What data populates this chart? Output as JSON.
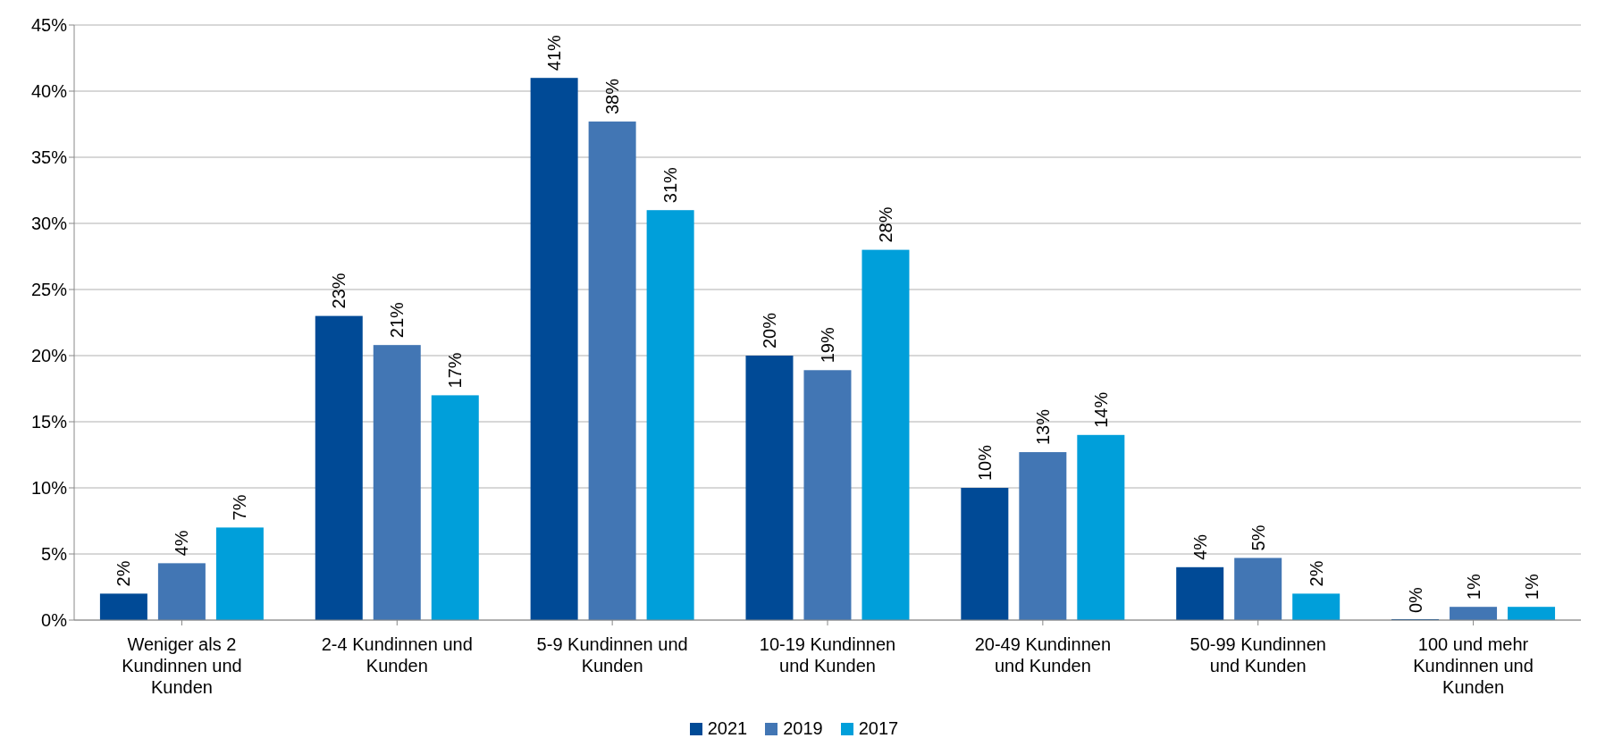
{
  "chart_data": {
    "type": "bar",
    "categories": [
      "Weniger als 2 Kundinnen und Kunden",
      "2-4 Kundinnen und Kunden",
      "5-9 Kundinnen und Kunden",
      "10-19 Kundinnen und Kunden",
      "20-49 Kundinnen und Kunden",
      "50-99 Kundinnen und Kunden",
      "100 und mehr Kundinnen und Kunden"
    ],
    "series": [
      {
        "name": "2021",
        "color": "#004a96",
        "values": [
          2,
          23,
          41,
          20,
          10,
          4,
          0
        ],
        "value_labels": [
          "2%",
          "23%",
          "41%",
          "20%",
          "10%",
          "4%",
          "0%"
        ]
      },
      {
        "name": "2019",
        "color": "#4276b4",
        "values": [
          4.3,
          20.8,
          37.7,
          18.9,
          12.7,
          4.7,
          1
        ],
        "value_labels": [
          "4%",
          "21%",
          "38%",
          "19%",
          "13%",
          "5%",
          "1%"
        ]
      },
      {
        "name": "2017",
        "color": "#009fda",
        "values": [
          7,
          17,
          31,
          28,
          14,
          2,
          1
        ],
        "value_labels": [
          "7%",
          "17%",
          "31%",
          "28%",
          "14%",
          "2%",
          "1%"
        ]
      }
    ],
    "ylim": [
      0,
      45
    ],
    "yticks": [
      {
        "value": 0,
        "label": "0%"
      },
      {
        "value": 5,
        "label": "5%"
      },
      {
        "value": 10,
        "label": "10%"
      },
      {
        "value": 15,
        "label": "15%"
      },
      {
        "value": 20,
        "label": "20%"
      },
      {
        "value": 25,
        "label": "25%"
      },
      {
        "value": 30,
        "label": "30%"
      },
      {
        "value": 35,
        "label": "35%"
      },
      {
        "value": 40,
        "label": "40%"
      },
      {
        "value": 45,
        "label": "45%"
      }
    ],
    "grid": "y",
    "legend": "bottom"
  }
}
